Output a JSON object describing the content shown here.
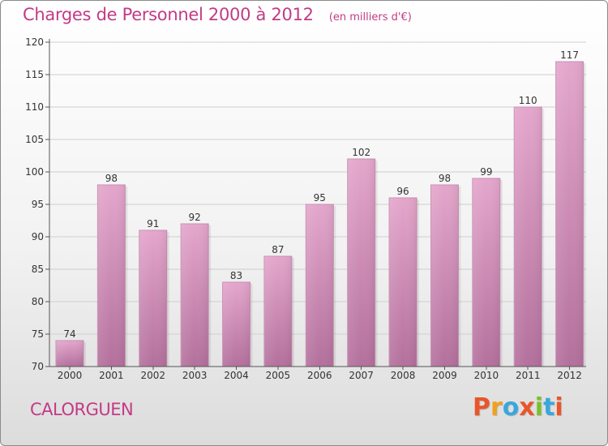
{
  "header": {
    "title": "Charges de Personnel 2000 à 2012",
    "subtitle": "(en milliers d'€)"
  },
  "footer": {
    "commune": "CALORGUEN",
    "logo_text": "Proxiti",
    "logo_colors": [
      "#e8562a",
      "#f0a020",
      "#3aa7dc",
      "#e8562a",
      "#7cbf2f",
      "#3aa7dc",
      "#e8562a"
    ]
  },
  "colors": {
    "accent": "#c23b86",
    "bar_top": "#e4a6cc",
    "bar_bottom": "#b3709c"
  },
  "chart_data": {
    "type": "bar",
    "title": "Charges de Personnel 2000 à 2012",
    "subtitle": "(en milliers d'€)",
    "categories": [
      "2000",
      "2001",
      "2002",
      "2003",
      "2004",
      "2005",
      "2006",
      "2007",
      "2008",
      "2009",
      "2010",
      "2011",
      "2012"
    ],
    "values": [
      74,
      98,
      91,
      92,
      83,
      87,
      95,
      102,
      96,
      98,
      99,
      110,
      117
    ],
    "ylim": [
      70,
      120
    ],
    "yticks": [
      70,
      75,
      80,
      85,
      90,
      95,
      100,
      105,
      110,
      115,
      120
    ],
    "xlabel": "",
    "ylabel": "",
    "grid": true,
    "legend": "none"
  }
}
